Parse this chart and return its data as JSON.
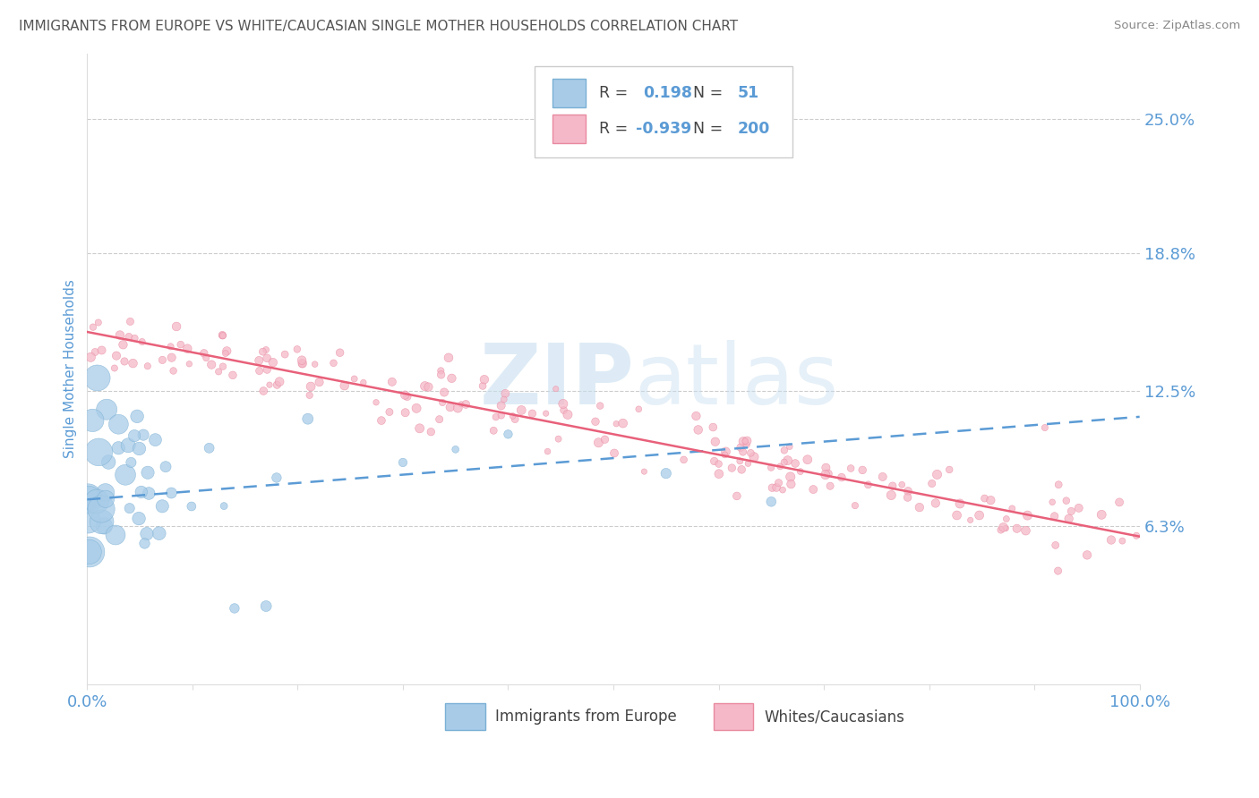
{
  "title": "IMMIGRANTS FROM EUROPE VS WHITE/CAUCASIAN SINGLE MOTHER HOUSEHOLDS CORRELATION CHART",
  "source": "Source: ZipAtlas.com",
  "ylabel": "Single Mother Households",
  "r_blue": 0.198,
  "n_blue": 51,
  "r_pink": -0.939,
  "n_pink": 200,
  "yticks": [
    0.063,
    0.125,
    0.188,
    0.25
  ],
  "ytick_labels": [
    "6.3%",
    "12.5%",
    "18.8%",
    "25.0%"
  ],
  "xtick_positions": [
    0.0,
    0.1,
    0.2,
    0.3,
    0.4,
    0.5,
    0.6,
    0.7,
    0.8,
    0.9,
    1.0
  ],
  "xtick_labels_show": [
    "0.0%",
    "",
    "",
    "",
    "",
    "",
    "",
    "",
    "",
    "",
    "100.0%"
  ],
  "xmin": 0.0,
  "xmax": 1.0,
  "ymin": -0.01,
  "ymax": 0.28,
  "blue_dot_color": "#a8cce8",
  "blue_edge_color": "#7ab0d4",
  "pink_dot_color": "#f5b8c8",
  "pink_edge_color": "#e88aa0",
  "trend_blue_color": "#5b9bd5",
  "trend_pink_color": "#e8607a",
  "watermark_color": "#c8dff0",
  "legend_label_blue": "Immigrants from Europe",
  "legend_label_pink": "Whites/Caucasians",
  "title_color": "#555555",
  "tick_label_color": "#5b9bd5",
  "source_color": "#888888",
  "grid_color": "#cccccc",
  "spine_color": "#dddddd"
}
